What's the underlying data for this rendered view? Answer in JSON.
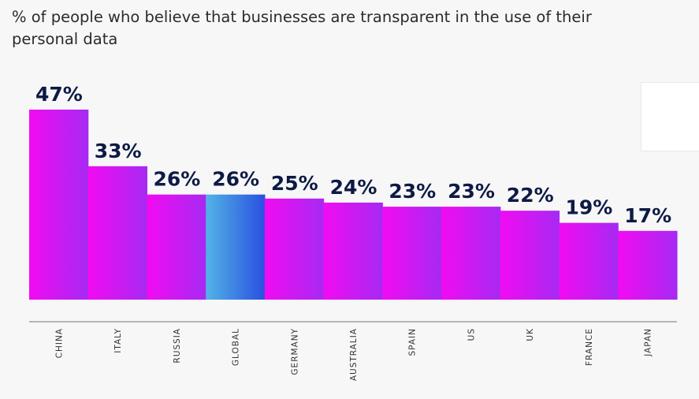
{
  "chart_data": {
    "type": "bar",
    "title": "% of people who believe that businesses are transparent in the use of their personal data",
    "categories": [
      "CHINA",
      "ITALY",
      "RUSSIA",
      "GLOBAL",
      "GERMANY",
      "AUSTRALIA",
      "SPAIN",
      "US",
      "UK",
      "FRANCE",
      "JAPAN"
    ],
    "values": [
      47,
      33,
      26,
      26,
      25,
      24,
      23,
      23,
      22,
      19,
      17
    ],
    "value_labels": [
      "47%",
      "33%",
      "26%",
      "26%",
      "25%",
      "24%",
      "23%",
      "23%",
      "22%",
      "19%",
      "17%"
    ],
    "highlight_category": "GLOBAL",
    "xlabel": "",
    "ylabel": "",
    "grid": false,
    "colors": {
      "bar_start": "#f20bf2",
      "bar_end": "#a62af2",
      "highlight_start": "#52b3e6",
      "highlight_end": "#2a4fe0",
      "label": "#0d1a45",
      "axis": "#777777"
    }
  }
}
